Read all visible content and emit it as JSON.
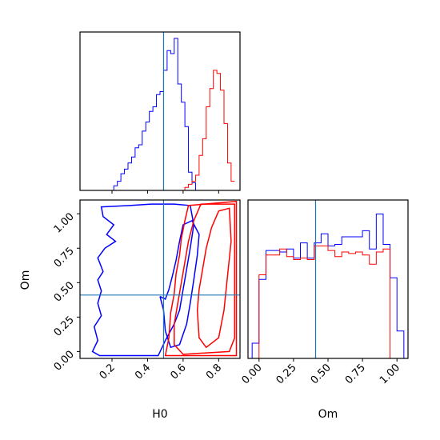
{
  "chart_data": [
    {
      "type": "histogram",
      "panel": "top-left",
      "variable": "H0",
      "xlim": [
        0.02,
        0.92
      ],
      "truth": 0.49,
      "truth_color": "#1f77b4",
      "bins": [
        0.04,
        0.06,
        0.08,
        0.1,
        0.12,
        0.14,
        0.16,
        0.18,
        0.2,
        0.22,
        0.24,
        0.26,
        0.28,
        0.3,
        0.32,
        0.34,
        0.36,
        0.38,
        0.4,
        0.42,
        0.44,
        0.46,
        0.48,
        0.5,
        0.52,
        0.54,
        0.56,
        0.58,
        0.6,
        0.62,
        0.64,
        0.66,
        0.68,
        0.7,
        0.72,
        0.74,
        0.76,
        0.78,
        0.8,
        0.82,
        0.84,
        0.86,
        0.88,
        0.9
      ],
      "series": [
        {
          "color": "#0000ff",
          "values": [
            0,
            0,
            0,
            0,
            0,
            0,
            0,
            0,
            0,
            0.03,
            0.06,
            0.11,
            0.14,
            0.18,
            0.22,
            0.28,
            0.3,
            0.39,
            0.45,
            0.52,
            0.55,
            0.63,
            0.65,
            0.79,
            0.92,
            0.9,
            1.0,
            0.7,
            0.58,
            0.42,
            0.12,
            0.05,
            0,
            0,
            0,
            0,
            0,
            0,
            0,
            0,
            0,
            0,
            0
          ]
        },
        {
          "color": "#ff0000",
          "values": [
            0,
            0,
            0,
            0,
            0,
            0,
            0,
            0,
            0,
            0,
            0,
            0,
            0,
            0,
            0,
            0,
            0,
            0,
            0,
            0,
            0,
            0,
            0,
            0,
            0,
            0,
            0,
            0,
            0,
            0.02,
            0.04,
            0.06,
            0.1,
            0.23,
            0.34,
            0.55,
            0.67,
            0.79,
            0.77,
            0.66,
            0.44,
            0.18,
            0.06
          ]
        }
      ]
    },
    {
      "type": "contour",
      "panel": "bottom-left",
      "xlabel": "H0",
      "ylabel": "Om",
      "xlim": [
        0.02,
        0.92
      ],
      "ylim": [
        -0.05,
        1.1
      ],
      "xticks": [
        "0.2",
        "0.4",
        "0.6",
        "0.8"
      ],
      "xtick_values": [
        0.2,
        0.4,
        0.6,
        0.8
      ],
      "yticks": [
        "0.00",
        "0.25",
        "0.50",
        "0.75",
        "1.00"
      ],
      "ytick_values": [
        0,
        0.25,
        0.5,
        0.75,
        1.0
      ],
      "truth": {
        "x": 0.49,
        "y": 0.41
      },
      "truth_color": "#1f77b4",
      "series": [
        {
          "color": "#0000ff",
          "levels": [
            [
              [
                0.42,
                1.07
              ],
              [
                0.3,
                1.06
              ],
              [
                0.14,
                1.05
              ],
              [
                0.15,
                0.98
              ],
              [
                0.21,
                0.92
              ],
              [
                0.17,
                0.85
              ],
              [
                0.22,
                0.8
              ],
              [
                0.16,
                0.75
              ],
              [
                0.12,
                0.68
              ],
              [
                0.15,
                0.58
              ],
              [
                0.12,
                0.52
              ],
              [
                0.14,
                0.44
              ],
              [
                0.12,
                0.35
              ],
              [
                0.14,
                0.26
              ],
              [
                0.1,
                0.18
              ],
              [
                0.12,
                0.08
              ],
              [
                0.09,
                0.0
              ],
              [
                0.13,
                -0.03
              ],
              [
                0.46,
                -0.03
              ],
              [
                0.5,
                0.08
              ],
              [
                0.55,
                0.2
              ],
              [
                0.58,
                0.3
              ],
              [
                0.6,
                0.45
              ],
              [
                0.62,
                0.6
              ],
              [
                0.64,
                0.75
              ],
              [
                0.66,
                0.92
              ],
              [
                0.64,
                1.06
              ],
              [
                0.55,
                1.07
              ],
              [
                0.42,
                1.07
              ]
            ],
            [
              [
                0.47,
                0.4
              ],
              [
                0.49,
                0.3
              ],
              [
                0.5,
                0.15
              ],
              [
                0.53,
                0.03
              ],
              [
                0.58,
                0.05
              ],
              [
                0.62,
                0.2
              ],
              [
                0.64,
                0.35
              ],
              [
                0.66,
                0.52
              ],
              [
                0.68,
                0.7
              ],
              [
                0.69,
                0.85
              ],
              [
                0.65,
                0.95
              ],
              [
                0.6,
                0.92
              ],
              [
                0.58,
                0.8
              ],
              [
                0.56,
                0.66
              ],
              [
                0.54,
                0.55
              ],
              [
                0.52,
                0.45
              ],
              [
                0.5,
                0.38
              ],
              [
                0.47,
                0.4
              ]
            ]
          ]
        },
        {
          "color": "#ff0000",
          "levels": [
            [
              [
                0.52,
                0.1
              ],
              [
                0.53,
                0.28
              ],
              [
                0.55,
                0.42
              ],
              [
                0.56,
                0.56
              ],
              [
                0.58,
                0.7
              ],
              [
                0.59,
                0.82
              ],
              [
                0.61,
                0.95
              ],
              [
                0.63,
                1.06
              ],
              [
                0.9,
                1.09
              ],
              [
                0.9,
                -0.03
              ],
              [
                0.5,
                -0.03
              ],
              [
                0.52,
                0.1
              ]
            ],
            [
              [
                0.55,
                0.2
              ],
              [
                0.57,
                0.35
              ],
              [
                0.59,
                0.5
              ],
              [
                0.61,
                0.65
              ],
              [
                0.63,
                0.8
              ],
              [
                0.66,
                0.95
              ],
              [
                0.7,
                1.07
              ],
              [
                0.89,
                1.07
              ],
              [
                0.89,
                0.1
              ],
              [
                0.86,
                0.0
              ],
              [
                0.6,
                -0.02
              ],
              [
                0.55,
                0.05
              ],
              [
                0.55,
                0.2
              ]
            ],
            [
              [
                0.68,
                0.3
              ],
              [
                0.69,
                0.45
              ],
              [
                0.71,
                0.6
              ],
              [
                0.73,
                0.75
              ],
              [
                0.76,
                0.9
              ],
              [
                0.8,
                1.02
              ],
              [
                0.86,
                1.04
              ],
              [
                0.87,
                0.8
              ],
              [
                0.85,
                0.55
              ],
              [
                0.83,
                0.3
              ],
              [
                0.8,
                0.1
              ],
              [
                0.73,
                0.03
              ],
              [
                0.69,
                0.1
              ],
              [
                0.68,
                0.3
              ]
            ]
          ]
        }
      ]
    },
    {
      "type": "histogram",
      "panel": "bottom-right",
      "variable": "Om",
      "xlabel": "Om",
      "xlim": [
        -0.08,
        1.08
      ],
      "xticks": [
        "0.00",
        "0.25",
        "0.50",
        "0.75",
        "1.00"
      ],
      "xtick_values": [
        0,
        0.25,
        0.5,
        0.75,
        1.0
      ],
      "truth": 0.41,
      "truth_color": "#1f77b4",
      "bin_edges": [
        -0.05,
        0.0,
        0.05,
        0.1,
        0.15,
        0.2,
        0.25,
        0.3,
        0.35,
        0.4,
        0.45,
        0.5,
        0.55,
        0.6,
        0.65,
        0.7,
        0.75,
        0.8,
        0.85,
        0.9,
        0.95,
        1.0,
        1.05
      ],
      "series": [
        {
          "color": "#0000ff",
          "values": [
            0.1,
            0.52,
            0.71,
            0.71,
            0.7,
            0.72,
            0.66,
            0.76,
            0.66,
            0.76,
            0.82,
            0.74,
            0.75,
            0.8,
            0.8,
            0.8,
            0.84,
            0.72,
            0.95,
            0.75,
            0.53,
            0.18
          ]
        },
        {
          "color": "#ff0000",
          "values": [
            0,
            0.55,
            0.68,
            0.68,
            0.72,
            0.67,
            0.65,
            0.66,
            0.65,
            0.74,
            0.74,
            0.71,
            0.67,
            0.7,
            0.69,
            0.7,
            0.68,
            0.62,
            0.7,
            0.72,
            0,
            0
          ]
        }
      ]
    }
  ]
}
